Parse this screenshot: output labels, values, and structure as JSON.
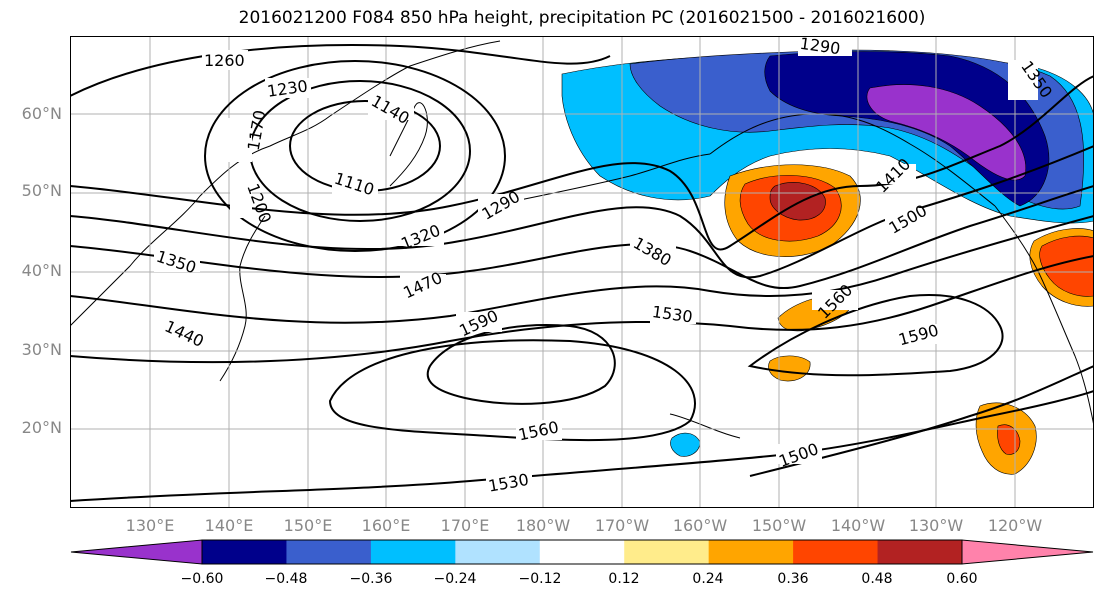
{
  "title": "2016021200 F084 850 hPa height, precipitation PC (2016021500 - 2016021600)",
  "lat_labels": [
    "60°N",
    "50°N",
    "40°N",
    "30°N",
    "20°N"
  ],
  "lon_labels": [
    "130°E",
    "140°E",
    "150°E",
    "160°E",
    "170°E",
    "180°W",
    "170°W",
    "160°W",
    "150°W",
    "140°W",
    "130°W",
    "120°W"
  ],
  "contour_labels": [
    "1260",
    "1230",
    "1170",
    "1140",
    "1110",
    "1200",
    "1290",
    "1320",
    "1350",
    "1440",
    "1470",
    "1590",
    "1380",
    "1530",
    "1560",
    "1530",
    "1500",
    "1410",
    "1500",
    "1560",
    "1590",
    "1290",
    "1350"
  ],
  "colorbar": {
    "ticks": [
      "−0.60",
      "−0.48",
      "−0.36",
      "−0.24",
      "−0.12",
      "0.12",
      "0.24",
      "0.36",
      "0.48",
      "0.60"
    ],
    "colors": [
      "#9932cc",
      "#00008b",
      "#3a5fcd",
      "#00bfff",
      "#b0e2ff",
      "#ffffff",
      "#ffec8b",
      "#ffa500",
      "#ff4500",
      "#b22222",
      "#ff82ab"
    ]
  }
}
